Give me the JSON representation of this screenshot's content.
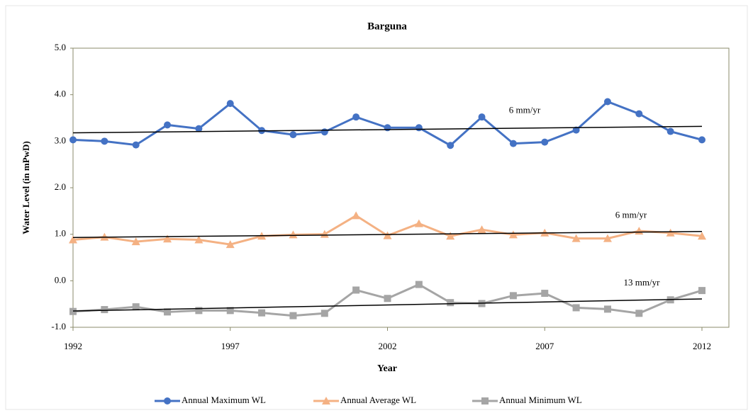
{
  "chart_data": {
    "type": "line",
    "title": "Barguna",
    "x_label": "Year",
    "y_label": "Water Level (in mPwD)",
    "x": [
      1992,
      1993,
      1994,
      1995,
      1996,
      1997,
      1998,
      1999,
      2000,
      2001,
      2002,
      2003,
      2004,
      2005,
      2006,
      2007,
      2008,
      2009,
      2010,
      2011,
      2012
    ],
    "series": [
      {
        "name": "Annual Maximum  WL",
        "color": "#4472c4",
        "marker": "circle",
        "values": [
          3.03,
          3.0,
          2.92,
          3.35,
          3.27,
          3.81,
          3.23,
          3.14,
          3.2,
          3.52,
          3.29,
          3.29,
          2.91,
          3.52,
          2.95,
          2.98,
          3.24,
          3.85,
          3.59,
          3.21,
          3.03
        ]
      },
      {
        "name": "Annual Average WL",
        "color": "#f4b183",
        "marker": "triangle",
        "values": [
          0.88,
          0.94,
          0.84,
          0.9,
          0.88,
          0.78,
          0.96,
          0.99,
          1.0,
          1.4,
          0.97,
          1.23,
          0.96,
          1.1,
          0.99,
          1.03,
          0.91,
          0.91,
          1.07,
          1.03,
          0.96
        ]
      },
      {
        "name": "Annual Minimum  WL",
        "color": "#a5a5a5",
        "marker": "square",
        "values": [
          -0.66,
          -0.62,
          -0.56,
          -0.67,
          -0.64,
          -0.64,
          -0.69,
          -0.75,
          -0.7,
          -0.2,
          -0.38,
          -0.08,
          -0.47,
          -0.49,
          -0.32,
          -0.27,
          -0.58,
          -0.61,
          -0.7,
          -0.41,
          -0.21
        ]
      }
    ],
    "trendlines": [
      {
        "label": "6 mm/yr",
        "color": "#000000",
        "values": [
          3.18,
          3.32
        ]
      },
      {
        "label": "6 mm/yr",
        "color": "#000000",
        "values": [
          0.93,
          1.06
        ]
      },
      {
        "label": "13 mm/yr",
        "color": "#000000",
        "values": [
          -0.65,
          -0.39
        ]
      }
    ],
    "xlim": [
      1992,
      2012
    ],
    "xticks": [
      1992,
      1997,
      2002,
      2007,
      2012
    ],
    "ylim": [
      -1.0,
      5.0
    ],
    "yticks": [
      {
        "value": -1.0,
        "label": "-1.0"
      },
      {
        "value": 0.0,
        "label": "0.0"
      },
      {
        "value": 1.0,
        "label": "1.0"
      },
      {
        "value": 2.0,
        "label": "2.0"
      },
      {
        "value": 3.0,
        "label": "3.0"
      },
      {
        "value": 4.0,
        "label": "4.0"
      },
      {
        "value": 5.0,
        "label": "5.0"
      }
    ],
    "legend": "bottom"
  }
}
